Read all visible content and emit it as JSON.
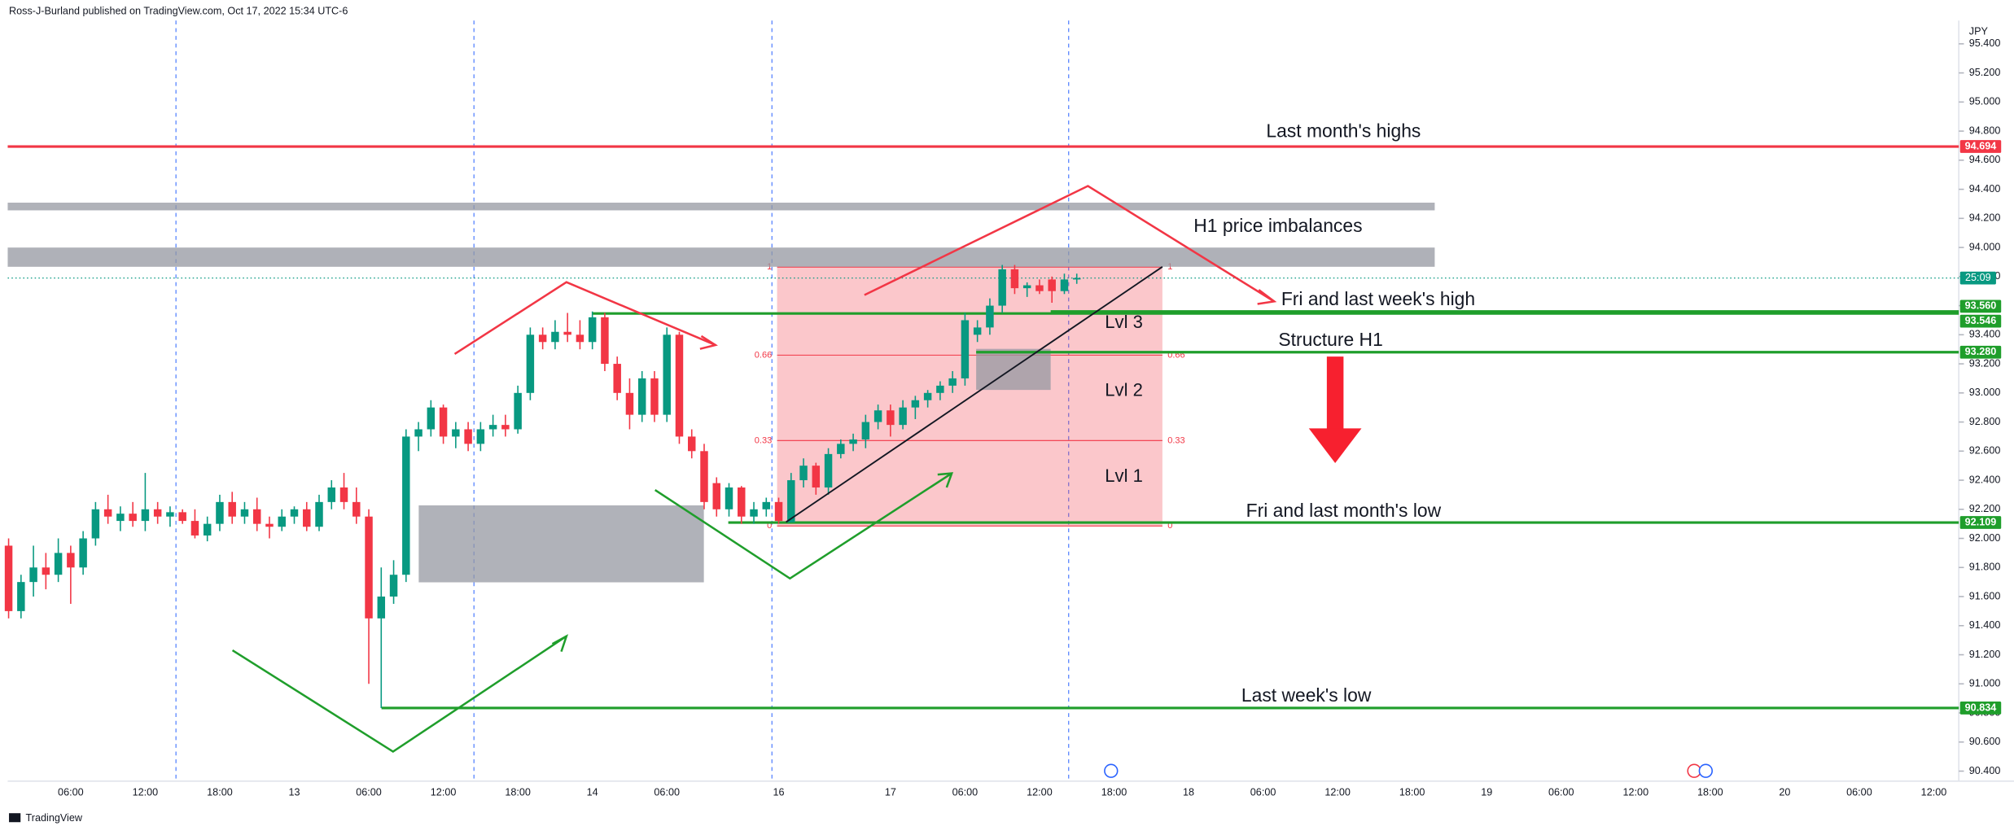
{
  "header": "Ross-J-Burland published on TradingView.com, Oct 17, 2022 15:34 UTC-6",
  "footer": "TradingView",
  "chart_data": {
    "type": "candlestick",
    "currency": "JPY",
    "up_color": "#089981",
    "down_color": "#f23645",
    "candles": [
      [
        91.95,
        92.0,
        91.45,
        91.5
      ],
      [
        91.5,
        91.75,
        91.45,
        91.7
      ],
      [
        91.7,
        91.95,
        91.6,
        91.8
      ],
      [
        91.8,
        91.9,
        91.65,
        91.75
      ],
      [
        91.75,
        92.0,
        91.7,
        91.9
      ],
      [
        91.9,
        91.95,
        91.55,
        91.8
      ],
      [
        91.8,
        92.05,
        91.75,
        92.0
      ],
      [
        92.0,
        92.25,
        91.95,
        92.2
      ],
      [
        92.2,
        92.3,
        92.1,
        92.15
      ],
      [
        92.12,
        92.22,
        92.05,
        92.17
      ],
      [
        92.17,
        92.25,
        92.08,
        92.12
      ],
      [
        92.12,
        92.45,
        92.05,
        92.2
      ],
      [
        92.2,
        92.25,
        92.1,
        92.15
      ],
      [
        92.15,
        92.22,
        92.08,
        92.18
      ],
      [
        92.18,
        92.2,
        92.1,
        92.12
      ],
      [
        92.12,
        92.2,
        92.0,
        92.02
      ],
      [
        92.02,
        92.15,
        91.98,
        92.1
      ],
      [
        92.1,
        92.3,
        92.05,
        92.25
      ],
      [
        92.25,
        92.32,
        92.1,
        92.15
      ],
      [
        92.15,
        92.25,
        92.1,
        92.2
      ],
      [
        92.2,
        92.28,
        92.05,
        92.1
      ],
      [
        92.1,
        92.15,
        92.0,
        92.08
      ],
      [
        92.08,
        92.2,
        92.05,
        92.15
      ],
      [
        92.15,
        92.22,
        92.1,
        92.2
      ],
      [
        92.2,
        92.25,
        92.05,
        92.08
      ],
      [
        92.08,
        92.3,
        92.05,
        92.25
      ],
      [
        92.25,
        92.4,
        92.2,
        92.35
      ],
      [
        92.35,
        92.45,
        92.2,
        92.25
      ],
      [
        92.25,
        92.35,
        92.1,
        92.15
      ],
      [
        92.15,
        92.2,
        91.0,
        91.45
      ],
      [
        91.45,
        91.8,
        90.834,
        91.6
      ],
      [
        91.6,
        91.85,
        91.55,
        91.75
      ],
      [
        91.75,
        92.75,
        91.7,
        92.7
      ],
      [
        92.7,
        92.8,
        92.6,
        92.75
      ],
      [
        92.75,
        92.95,
        92.7,
        92.9
      ],
      [
        92.9,
        92.92,
        92.65,
        92.7
      ],
      [
        92.7,
        92.8,
        92.62,
        92.75
      ],
      [
        92.75,
        92.8,
        92.6,
        92.65
      ],
      [
        92.65,
        92.8,
        92.6,
        92.75
      ],
      [
        92.75,
        92.85,
        92.7,
        92.78
      ],
      [
        92.78,
        92.85,
        92.7,
        92.75
      ],
      [
        92.75,
        93.05,
        92.72,
        93.0
      ],
      [
        93.0,
        93.45,
        92.95,
        93.4
      ],
      [
        93.4,
        93.45,
        93.3,
        93.35
      ],
      [
        93.35,
        93.5,
        93.3,
        93.42
      ],
      [
        93.42,
        93.55,
        93.35,
        93.4
      ],
      [
        93.4,
        93.5,
        93.3,
        93.35
      ],
      [
        93.35,
        93.56,
        93.3,
        93.52
      ],
      [
        93.52,
        93.55,
        93.15,
        93.2
      ],
      [
        93.2,
        93.25,
        92.95,
        93.0
      ],
      [
        93.0,
        93.1,
        92.75,
        92.85
      ],
      [
        92.85,
        93.15,
        92.8,
        93.1
      ],
      [
        93.1,
        93.15,
        92.8,
        92.85
      ],
      [
        92.85,
        93.45,
        92.8,
        93.4
      ],
      [
        93.4,
        93.42,
        92.65,
        92.7
      ],
      [
        92.7,
        92.75,
        92.55,
        92.6
      ],
      [
        92.6,
        92.65,
        92.2,
        92.25
      ],
      [
        92.38,
        92.42,
        92.15,
        92.2
      ],
      [
        92.2,
        92.38,
        92.15,
        92.35
      ],
      [
        92.35,
        92.36,
        92.1,
        92.15
      ],
      [
        92.15,
        92.25,
        92.1,
        92.2
      ],
      [
        92.2,
        92.28,
        92.15,
        92.25
      ],
      [
        92.25,
        92.28,
        92.1,
        92.12
      ],
      [
        92.11,
        92.45,
        92.109,
        92.4
      ],
      [
        92.4,
        92.55,
        92.35,
        92.5
      ],
      [
        92.5,
        92.52,
        92.3,
        92.35
      ],
      [
        92.35,
        92.62,
        92.3,
        92.58
      ],
      [
        92.58,
        92.68,
        92.55,
        92.65
      ],
      [
        92.65,
        92.72,
        92.6,
        92.68
      ],
      [
        92.68,
        92.85,
        92.62,
        92.8
      ],
      [
        92.8,
        92.92,
        92.75,
        92.88
      ],
      [
        92.88,
        92.92,
        92.7,
        92.78
      ],
      [
        92.78,
        92.95,
        92.75,
        92.9
      ],
      [
        92.9,
        92.98,
        92.82,
        92.95
      ],
      [
        92.95,
        93.02,
        92.9,
        93.0
      ],
      [
        93.0,
        93.08,
        92.95,
        93.05
      ],
      [
        93.05,
        93.15,
        93.0,
        93.1
      ],
      [
        93.1,
        93.55,
        93.05,
        93.5
      ],
      [
        93.4,
        93.5,
        93.35,
        93.45
      ],
      [
        93.45,
        93.65,
        93.4,
        93.6
      ],
      [
        93.6,
        93.88,
        93.55,
        93.85
      ],
      [
        93.85,
        93.88,
        93.68,
        93.72
      ],
      [
        93.72,
        93.76,
        93.66,
        93.74
      ],
      [
        93.74,
        93.78,
        93.68,
        93.7
      ],
      [
        93.78,
        93.8,
        93.62,
        93.7
      ],
      [
        93.7,
        93.82,
        93.68,
        93.78
      ],
      [
        93.78,
        93.82,
        93.75,
        93.79
      ]
    ],
    "xlim": [
      0,
      157
    ],
    "xticks": [
      {
        "value": 5,
        "label": "06:00"
      },
      {
        "value": 11,
        "label": "12:00"
      },
      {
        "value": 17,
        "label": "18:00"
      },
      {
        "value": 23,
        "label": "13"
      },
      {
        "value": 29,
        "label": "06:00"
      },
      {
        "value": 35,
        "label": "12:00"
      },
      {
        "value": 41,
        "label": "18:00"
      },
      {
        "value": 47,
        "label": "14"
      },
      {
        "value": 53,
        "label": "06:00"
      },
      {
        "value": 62,
        "label": "16"
      },
      {
        "value": 71,
        "label": "17"
      },
      {
        "value": 77,
        "label": "06:00"
      },
      {
        "value": 83,
        "label": "12:00"
      },
      {
        "value": 89,
        "label": "18:00"
      },
      {
        "value": 95,
        "label": "18"
      },
      {
        "value": 101,
        "label": "06:00"
      },
      {
        "value": 107,
        "label": "12:00"
      },
      {
        "value": 113,
        "label": "18:00"
      },
      {
        "value": 119,
        "label": "19"
      },
      {
        "value": 125,
        "label": "06:00"
      },
      {
        "value": 131,
        "label": "12:00"
      },
      {
        "value": 137,
        "label": "18:00"
      },
      {
        "value": 143,
        "label": "20"
      },
      {
        "value": 149,
        "label": "06:00"
      },
      {
        "value": 155,
        "label": "12:00"
      }
    ],
    "ylim": [
      90.34,
      95.45
    ],
    "yticks": [
      {
        "value": 90.4,
        "label": "90.400"
      },
      {
        "value": 90.6,
        "label": "90.600"
      },
      {
        "value": 90.8,
        "label": "90.800"
      },
      {
        "value": 91.0,
        "label": "91.000"
      },
      {
        "value": 91.2,
        "label": "91.200"
      },
      {
        "value": 91.4,
        "label": "91.400"
      },
      {
        "value": 91.6,
        "label": "91.600"
      },
      {
        "value": 91.8,
        "label": "91.800"
      },
      {
        "value": 92.0,
        "label": "92.000"
      },
      {
        "value": 92.2,
        "label": "92.200"
      },
      {
        "value": 92.4,
        "label": "92.400"
      },
      {
        "value": 92.6,
        "label": "92.600"
      },
      {
        "value": 92.8,
        "label": "92.800"
      },
      {
        "value": 93.0,
        "label": "93.000"
      },
      {
        "value": 93.2,
        "label": "93.200"
      },
      {
        "value": 93.4,
        "label": "93.400"
      },
      {
        "value": 93.6,
        "label": "93.600"
      },
      {
        "value": 93.8,
        "label": "93.800"
      },
      {
        "value": 94.0,
        "label": "94.000"
      },
      {
        "value": 94.2,
        "label": "94.200"
      },
      {
        "value": 94.4,
        "label": "94.400"
      },
      {
        "value": 94.6,
        "label": "94.600"
      },
      {
        "value": 94.8,
        "label": "94.800"
      },
      {
        "value": 95.0,
        "label": "95.000"
      },
      {
        "value": 95.2,
        "label": "95.200"
      },
      {
        "value": 95.4,
        "label": "95.400"
      }
    ],
    "levels": [
      {
        "value": 94.694,
        "label": "94.694",
        "color": "#f23645"
      },
      {
        "value": 93.56,
        "label": "93.560",
        "color": "#1f9e2b"
      },
      {
        "value": 93.546,
        "label": "93.546",
        "color": "#1f9e2b"
      },
      {
        "value": 93.28,
        "label": "93.280",
        "color": "#1f9e2b"
      },
      {
        "value": 92.109,
        "label": "92.109",
        "color": "#1f9e2b"
      },
      {
        "value": 90.834,
        "label": "90.834",
        "color": "#1f9e2b"
      }
    ],
    "countdown": "25:09",
    "fib": {
      "levels": [
        1,
        0.66,
        0.33,
        0
      ],
      "range": [
        92.085,
        93.865
      ],
      "color": "#f23645"
    },
    "annotations": {
      "last_month_highs": "Last month's highs",
      "h1_imbalances": "H1 price imbalances",
      "fri_week_high": "Fri and last week's high",
      "structure": "Structure H1",
      "fri_month_low": "Fri and last month's low",
      "last_week_low": "Last week's low",
      "lvl3": "Lvl 3",
      "lvl2": "Lvl 2",
      "lvl1": "Lvl 1"
    }
  }
}
